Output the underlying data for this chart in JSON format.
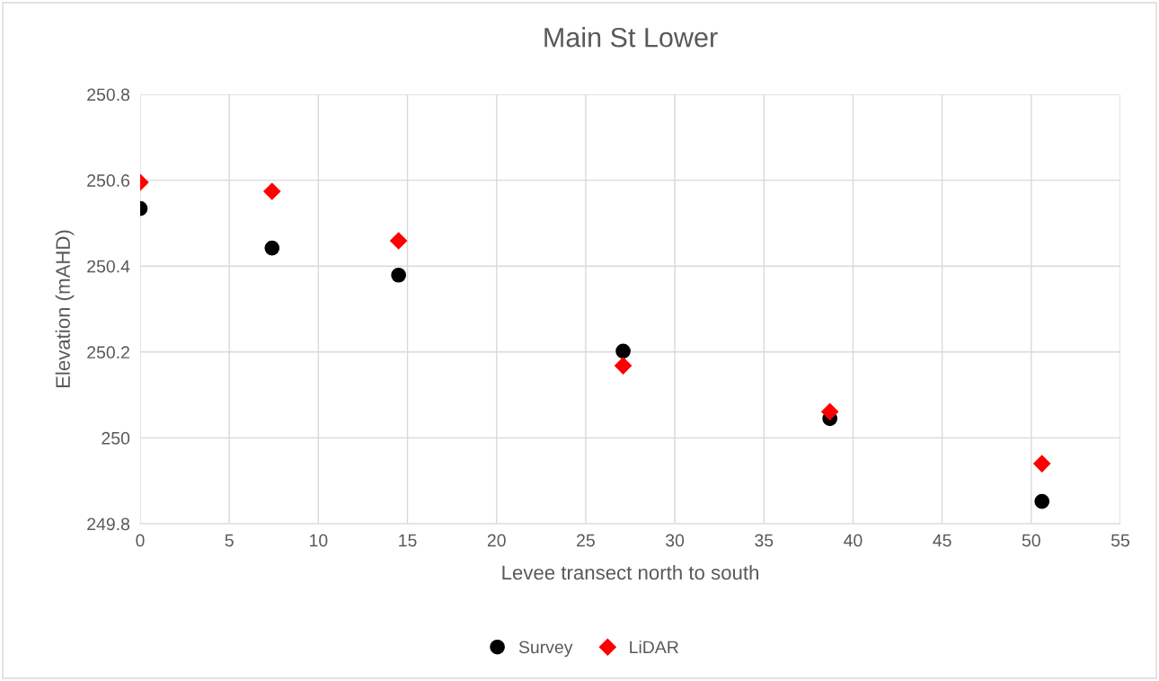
{
  "chart_data": {
    "type": "scatter",
    "title": "Main St Lower",
    "xlabel": "Levee transect north to south",
    "ylabel": "Elevation (mAHD)",
    "xlim": [
      0,
      55
    ],
    "xticks": [
      0,
      5,
      10,
      15,
      20,
      25,
      30,
      35,
      40,
      45,
      50,
      55
    ],
    "ylim": [
      249.8,
      250.8
    ],
    "yticks": [
      249.8,
      250,
      250.2,
      250.4,
      250.6,
      250.8
    ],
    "grid": true,
    "legend": "bottom",
    "series": [
      {
        "name": "Survey",
        "color": "#000000",
        "marker": "circle",
        "x": [
          0,
          7.4,
          14.5,
          27.1,
          38.7,
          50.6
        ],
        "values": [
          250.534,
          250.442,
          250.379,
          250.202,
          250.045,
          249.852
        ]
      },
      {
        "name": "LiDAR",
        "color": "#ff0000",
        "marker": "diamond",
        "x": [
          0,
          7.4,
          14.5,
          27.1,
          38.7,
          50.6
        ],
        "values": [
          250.595,
          250.574,
          250.459,
          250.168,
          250.061,
          249.94
        ]
      }
    ]
  }
}
